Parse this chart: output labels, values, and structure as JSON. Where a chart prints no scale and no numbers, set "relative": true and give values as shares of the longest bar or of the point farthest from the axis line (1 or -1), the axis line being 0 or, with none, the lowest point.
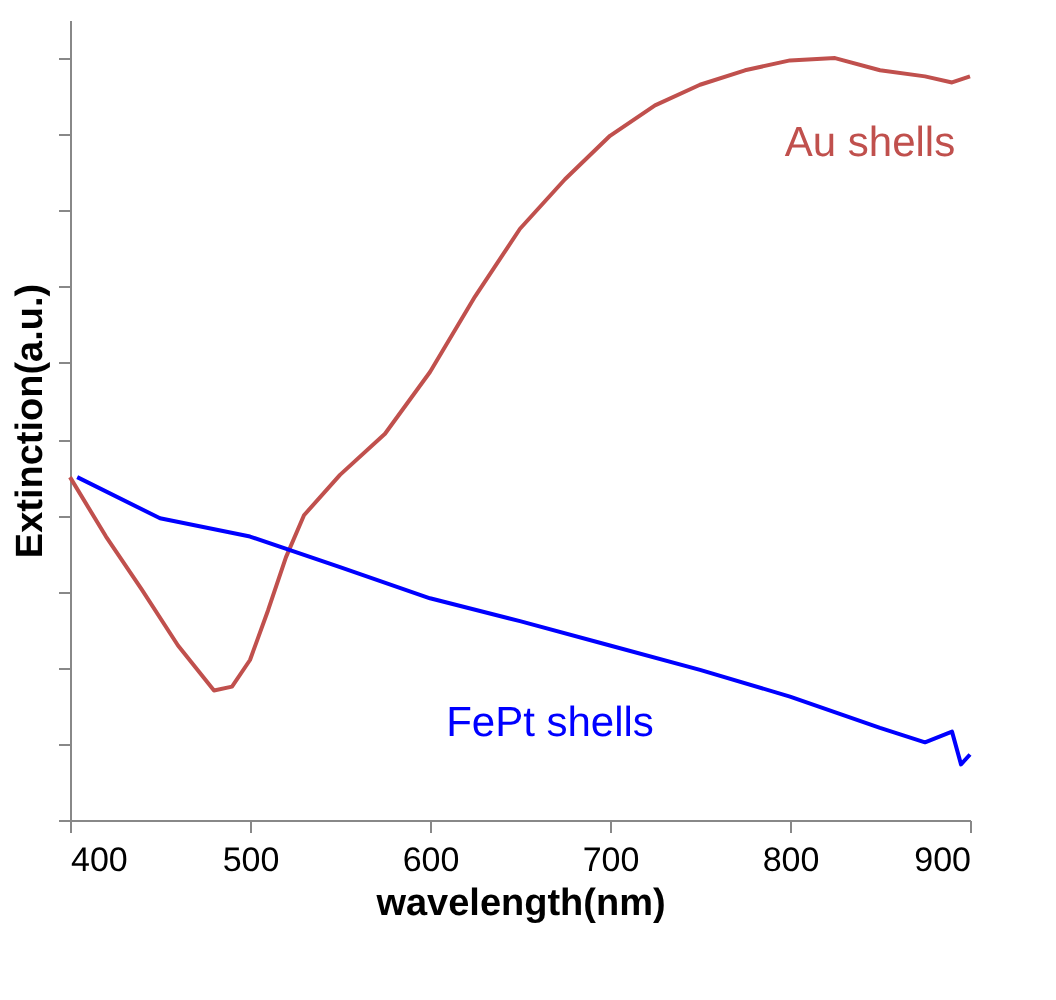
{
  "chart_data": {
    "type": "line",
    "relative": true,
    "xlabel": "wavelength(nm)",
    "ylabel": "Extinction(a.u.)",
    "xlim": [
      400,
      900
    ],
    "xticks": [
      400,
      500,
      600,
      700,
      800,
      900
    ],
    "grid": false,
    "legend": false,
    "marker": "none",
    "line_style": "solid",
    "series": [
      {
        "name": "Au shells",
        "color": "#c0504d",
        "x": [
          400,
          420,
          440,
          460,
          480,
          490,
          500,
          510,
          520,
          530,
          550,
          575,
          600,
          625,
          650,
          675,
          700,
          725,
          750,
          775,
          800,
          825,
          850,
          875,
          890,
          900
        ],
        "values": [
          0.45,
          0.372,
          0.302,
          0.229,
          0.17,
          0.175,
          0.21,
          0.275,
          0.345,
          0.4,
          0.453,
          0.507,
          0.588,
          0.687,
          0.776,
          0.841,
          0.898,
          0.938,
          0.965,
          0.984,
          0.997,
          1.0,
          0.984,
          0.976,
          0.968,
          0.976
        ]
      },
      {
        "name": "FePt shells",
        "color": "#0000ff",
        "x": [
          404,
          450,
          500,
          550,
          600,
          650,
          700,
          750,
          800,
          850,
          875,
          890,
          895,
          900
        ],
        "values": [
          0.45,
          0.396,
          0.372,
          0.332,
          0.291,
          0.261,
          0.229,
          0.197,
          0.162,
          0.121,
          0.102,
          0.116,
          0.073,
          0.086
        ]
      }
    ]
  }
}
